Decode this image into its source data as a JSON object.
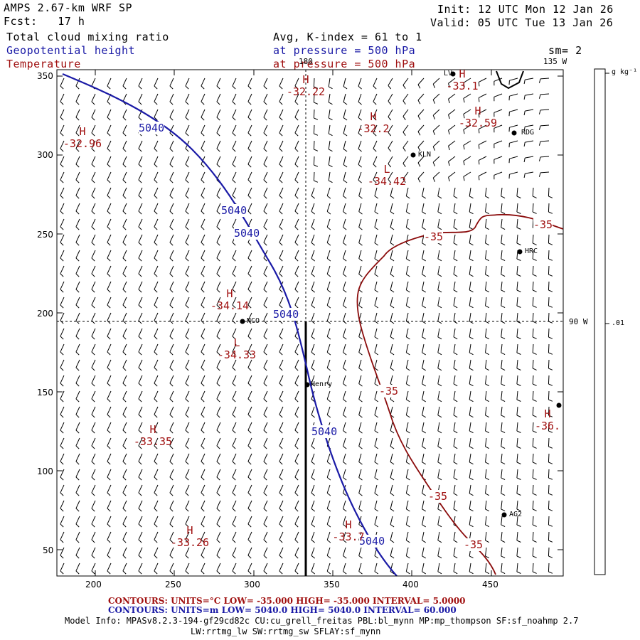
{
  "header": {
    "model": "AMPS 2.67-km WRF SP",
    "fcst_label": "Fcst:",
    "fcst_value": "17 h",
    "init": "Init: 12 UTC Mon 12 Jan 26",
    "valid": "Valid: 05 UTC Tue 13 Jan 26",
    "field1": "Total cloud mixing ratio",
    "field2": "Geopotential height",
    "field3": "Temperature",
    "avg_k": "Avg, K-index =  61 to   1",
    "pressure1": "at pressure =  500 hPa",
    "pressure2": "at pressure =  500 hPa",
    "sm": "sm= 2"
  },
  "map": {
    "meridian_top": "180",
    "meridian_135": "135 W",
    "meridian_90": "90 W",
    "x_ticks": [
      "200",
      "250",
      "300",
      "350",
      "400",
      "450"
    ],
    "y_ticks": [
      "350",
      "300",
      "250",
      "200",
      "150",
      "100",
      "50"
    ],
    "colorbar_unit": "g kg⁻¹",
    "colorbar_value": ".01",
    "colors": {
      "height": "#1a1aa6",
      "temperature": "#a01010",
      "wind": "#000000"
    },
    "height_labels": [
      "5040",
      "5040",
      "5040",
      "5040",
      "5040",
      "5040"
    ],
    "temp_labels": [
      "-35",
      "-35",
      "-35",
      "-35",
      "-35"
    ],
    "highs_lows": [
      {
        "type": "H",
        "value": "-32.22"
      },
      {
        "type": "H",
        "value": "-33.1"
      },
      {
        "type": "H",
        "value": "-32.2"
      },
      {
        "type": "H",
        "value": "-32.59"
      },
      {
        "type": "H",
        "value": "-32.96"
      },
      {
        "type": "L",
        "value": "-34.42"
      },
      {
        "type": "H",
        "value": "-34.14"
      },
      {
        "type": "L",
        "value": "-34.33"
      },
      {
        "type": "H",
        "value": "-33.35"
      },
      {
        "type": "H",
        "value": "-36."
      },
      {
        "type": "H",
        "value": "-33.26"
      },
      {
        "type": "H",
        "value": "-33.7"
      }
    ],
    "stations": [
      "RDG",
      "KLN",
      "HRC",
      "NCO",
      "Henry",
      "AG2",
      "LV"
    ]
  },
  "footer": {
    "contours_temp": "CONTOURS:  UNITS=°C  LOW=  -35.000       HIGH=  -35.000       INTERVAL=    5.0000",
    "contours_height": "CONTOURS:  UNITS=m   LOW=   5040.0       HIGH=   5040.0       INTERVAL=    60.000",
    "model_info": "Model Info: MPASv8.2.3-194-gf29cd82c CU:cu_grell_freitas PBL:bl_mynn MP:mp_thompson SF:sf_noahmp 2.7",
    "model_info2": "LW:rrtmg_lw SW:rrtmg_sw SFLAY:sf_mynn"
  }
}
